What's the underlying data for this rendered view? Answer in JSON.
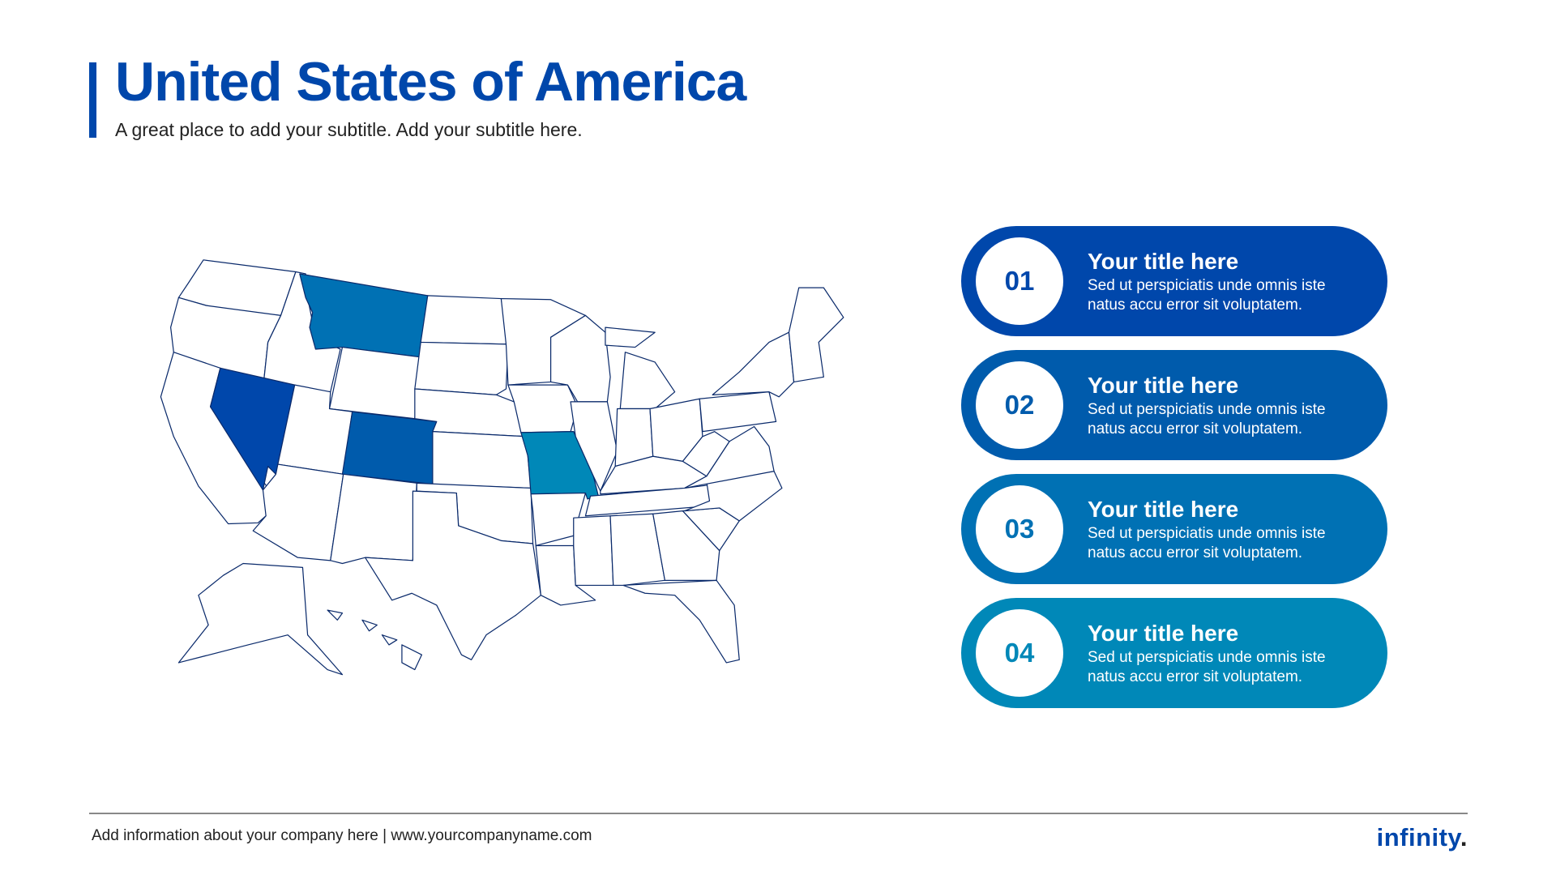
{
  "header": {
    "title": "United States of America",
    "subtitle": "A great place to add your subtitle. Add your subtitle here."
  },
  "map": {
    "highlighted_states": [
      {
        "state": "Nevada",
        "color": "#0047AB"
      },
      {
        "state": "Colorado",
        "color": "#005BAC"
      },
      {
        "state": "Montana",
        "color": "#0071B4"
      },
      {
        "state": "Missouri",
        "color": "#0088B8"
      }
    ]
  },
  "cards": [
    {
      "number": "01",
      "title": "Your title here",
      "body": "Sed ut perspiciatis unde omnis iste natus accu error sit voluptatem.",
      "color": "#0047AB"
    },
    {
      "number": "02",
      "title": "Your title here",
      "body": "Sed ut perspiciatis unde omnis iste natus accu error sit voluptatem.",
      "color": "#005BAC"
    },
    {
      "number": "03",
      "title": "Your title here",
      "body": "Sed ut perspiciatis unde omnis iste natus accu error sit voluptatem.",
      "color": "#0071B4"
    },
    {
      "number": "04",
      "title": "Your title here",
      "body": "Sed ut perspiciatis unde omnis iste natus accu error sit voluptatem.",
      "color": "#0088B8"
    }
  ],
  "footer": {
    "text": "Add information about your company here | www.yourcompanyname.com",
    "logo": "infinity",
    "logo_dot": "."
  }
}
